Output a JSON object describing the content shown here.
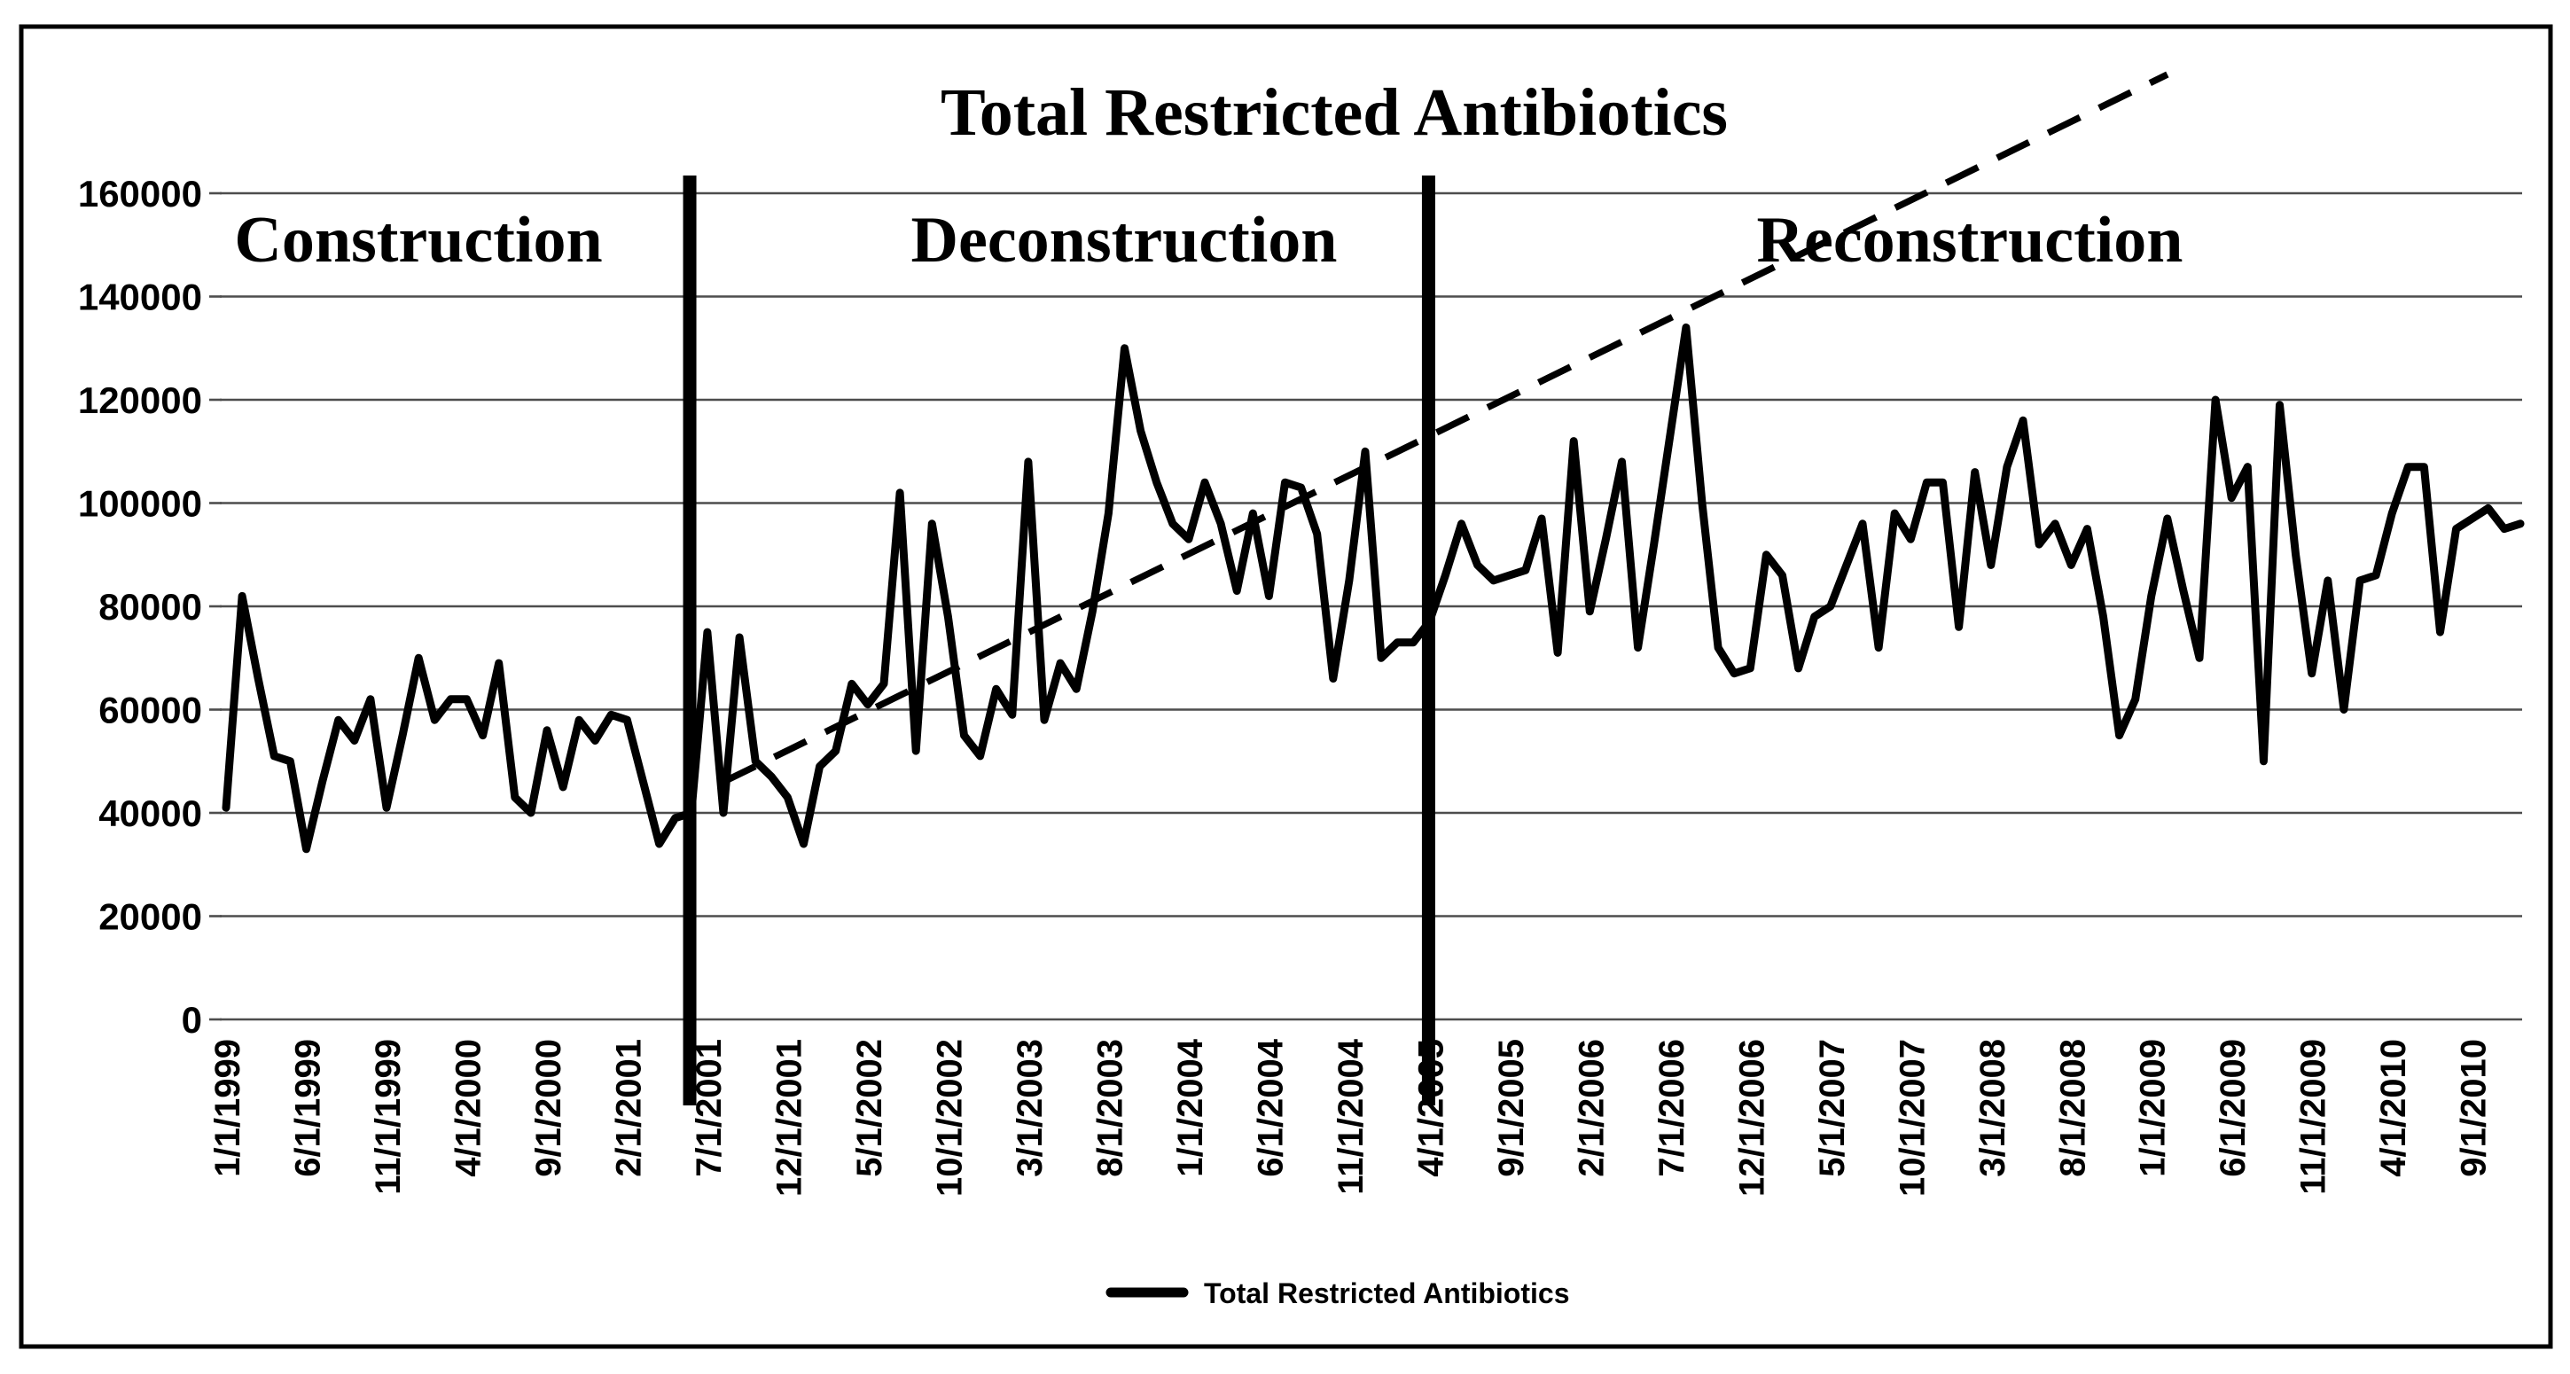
{
  "legend": {
    "label": "Total Restricted Antibiotics"
  },
  "colors": {
    "background": "#ffffff",
    "line": "#000000",
    "gridline": "#4d4d4d",
    "border": "#000000",
    "divider": "#000000",
    "trendline": "#000000"
  },
  "chart_data": {
    "type": "line",
    "title": "Total Restricted Antibiotics",
    "xlabel": "",
    "ylabel": "",
    "ylim": [
      0,
      160000
    ],
    "grid": "horizontal",
    "legend_position": "bottom-center",
    "phases": [
      {
        "label": "Construction",
        "start_date": "1/1/1999",
        "end_date": "6/1/2001"
      },
      {
        "label": "Deconstruction",
        "start_date": "7/1/2001",
        "end_date": "3/1/2005"
      },
      {
        "label": "Reconstruction",
        "start_date": "4/1/2005",
        "end_date": "12/1/2010"
      }
    ],
    "phase_divider_month_indices": [
      28.9,
      74.95
    ],
    "y_axis": {
      "tick_labels": [
        "160000",
        "140000",
        "120000",
        "100000",
        "80000",
        "60000",
        "40000",
        "20000",
        "0"
      ],
      "tick_values": [
        160000,
        140000,
        120000,
        100000,
        80000,
        60000,
        40000,
        20000,
        0
      ]
    },
    "x_axis": {
      "tick_label_every_n_months": 5,
      "tick_labels": [
        "1/1/1999",
        "6/1/1999",
        "11/1/1999",
        "4/1/2000",
        "9/1/2000",
        "2/1/2001",
        "7/1/2001",
        "12/1/2001",
        "5/1/2002",
        "10/1/2002",
        "3/1/2003",
        "8/1/2003",
        "1/1/2004",
        "6/1/2004",
        "11/1/2004",
        "4/1/2005",
        "9/1/2005",
        "2/1/2006",
        "7/1/2006",
        "12/1/2006",
        "5/1/2007",
        "10/1/2007",
        "3/1/2008",
        "8/1/2008",
        "1/1/2009",
        "6/1/2009",
        "11/1/2009",
        "4/1/2010",
        "9/1/2010"
      ]
    },
    "series": [
      {
        "name": "Total Restricted Antibiotics",
        "start_month": "1/1999",
        "frequency": "monthly",
        "values": [
          41000,
          82000,
          66000,
          51000,
          50000,
          33000,
          46000,
          58000,
          54000,
          62000,
          41000,
          55000,
          70000,
          58000,
          62000,
          62000,
          55000,
          69000,
          43000,
          40000,
          56000,
          45000,
          58000,
          54000,
          59000,
          58000,
          46000,
          34000,
          39000,
          40000,
          75000,
          40000,
          74000,
          50000,
          47000,
          43000,
          34000,
          49000,
          52000,
          65000,
          61000,
          65000,
          102000,
          52000,
          96000,
          78000,
          55000,
          51000,
          64000,
          59000,
          108000,
          58000,
          69000,
          64000,
          79000,
          98000,
          130000,
          114000,
          104000,
          96000,
          93000,
          104000,
          96000,
          83000,
          98000,
          82000,
          104000,
          103000,
          94000,
          66000,
          85000,
          110000,
          70000,
          73000,
          73000,
          77000,
          86000,
          96000,
          88000,
          85000,
          86000,
          87000,
          97000,
          71000,
          112000,
          79000,
          93000,
          108000,
          72000,
          92000,
          113000,
          134000,
          100000,
          72000,
          67000,
          68000,
          90000,
          86000,
          68000,
          78000,
          80000,
          88000,
          96000,
          72000,
          98000,
          93000,
          104000,
          104000,
          76000,
          106000,
          88000,
          107000,
          116000,
          92000,
          96000,
          88000,
          95000,
          78000,
          55000,
          62000,
          82000,
          97000,
          83000,
          70000,
          120000,
          101000,
          107000,
          50000,
          119000,
          90000,
          67000,
          85000,
          60000,
          85000,
          86000,
          98000,
          107000,
          107000,
          75000,
          95000,
          97000,
          99000,
          95000,
          96000
        ]
      }
    ],
    "trendline": {
      "style": "dashed",
      "start": {
        "month_index": 31,
        "value": 46000
      },
      "end": {
        "month_index": 121,
        "value": 183000
      }
    }
  }
}
